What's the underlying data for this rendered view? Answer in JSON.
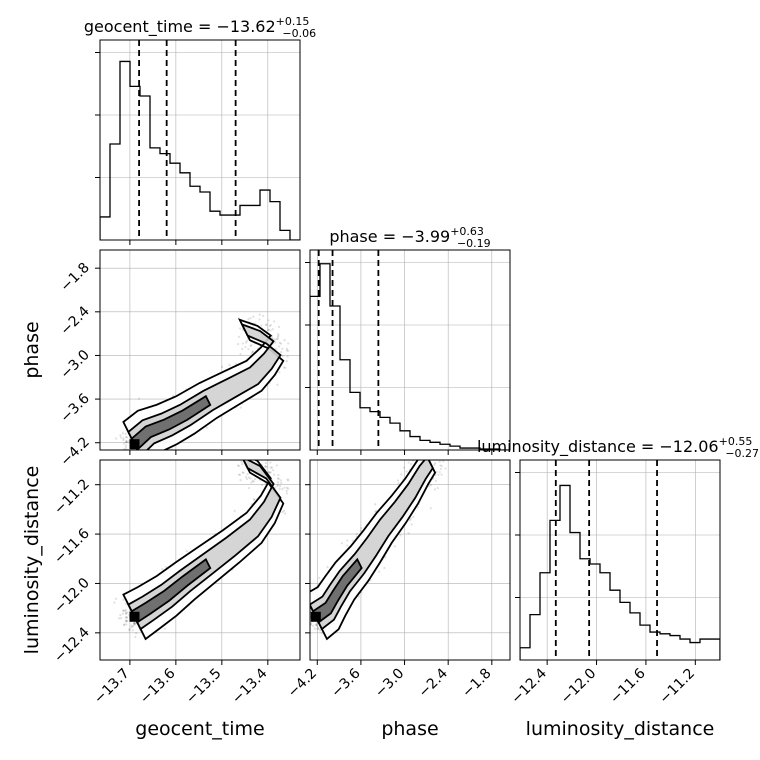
{
  "chart_data": {
    "type": "corner",
    "parameters": [
      "geocent_time",
      "phase",
      "luminosity_distance"
    ],
    "titles": [
      {
        "name": "geocent_time",
        "median": "−13.62",
        "plus": "+0.15",
        "minus": "−0.06"
      },
      {
        "name": "phase",
        "median": "−3.99",
        "plus": "+0.63",
        "minus": "−0.19"
      },
      {
        "name": "luminosity_distance",
        "median": "−12.06",
        "plus": "+0.55",
        "minus": "−0.27"
      }
    ],
    "axis_labels": {
      "x": [
        "geocent_time",
        "phase",
        "luminosity_distance"
      ],
      "y": [
        "phase",
        "luminosity_distance"
      ]
    },
    "ranges": {
      "geocent_time": [
        -13.765,
        -13.33
      ],
      "phase": [
        -4.3,
        -1.55
      ],
      "luminosity_distance": [
        -12.62,
        -11.0
      ]
    },
    "ticks": {
      "geocent_time": [
        -13.7,
        -13.6,
        -13.5,
        -13.4
      ],
      "phase": [
        -4.2,
        -3.6,
        -3.0,
        -2.4,
        -1.8
      ],
      "luminosity_distance": [
        -12.4,
        -12.0,
        -11.6,
        -11.2
      ]
    },
    "tick_labels": {
      "geocent_time": [
        "−13.7",
        "−13.6",
        "−13.5",
        "−13.4"
      ],
      "phase": [
        "−4.2",
        "−3.6",
        "−3.0",
        "−2.4",
        "−1.8"
      ],
      "luminosity_distance": [
        "−12.4",
        "−12.0",
        "−11.6",
        "−11.2"
      ]
    },
    "quantiles": {
      "geocent_time": [
        -13.68,
        -13.62,
        -13.47
      ],
      "phase": [
        -4.18,
        -3.99,
        -3.36
      ],
      "luminosity_distance": [
        -12.33,
        -12.06,
        -11.51
      ]
    },
    "histograms": {
      "geocent_time": [
        0.12,
        0.5,
        0.93,
        0.8,
        0.75,
        0.48,
        0.45,
        0.4,
        0.35,
        0.28,
        0.25,
        0.15,
        0.13,
        0.13,
        0.18,
        0.18,
        0.26,
        0.2,
        0.05,
        0.0
      ],
      "phase": [
        0.8,
        0.97,
        0.75,
        0.47,
        0.3,
        0.22,
        0.2,
        0.17,
        0.14,
        0.1,
        0.07,
        0.05,
        0.04,
        0.03,
        0.02,
        0.01,
        0.01,
        0.005,
        0.005,
        0.0
      ],
      "luminosity_distance": [
        0.07,
        0.26,
        0.5,
        0.8,
        1.0,
        0.73,
        0.58,
        0.55,
        0.5,
        0.4,
        0.33,
        0.27,
        0.2,
        0.16,
        0.15,
        0.14,
        0.12,
        0.1,
        0.12,
        0.12
      ]
    },
    "hist_ymax": {
      "geocent_time": 1.0,
      "phase": 1.0,
      "luminosity_distance": 1.1
    },
    "grid": true,
    "colors": {
      "line": "#000000",
      "grid": "#b0b0b0",
      "density": "#000000"
    }
  }
}
